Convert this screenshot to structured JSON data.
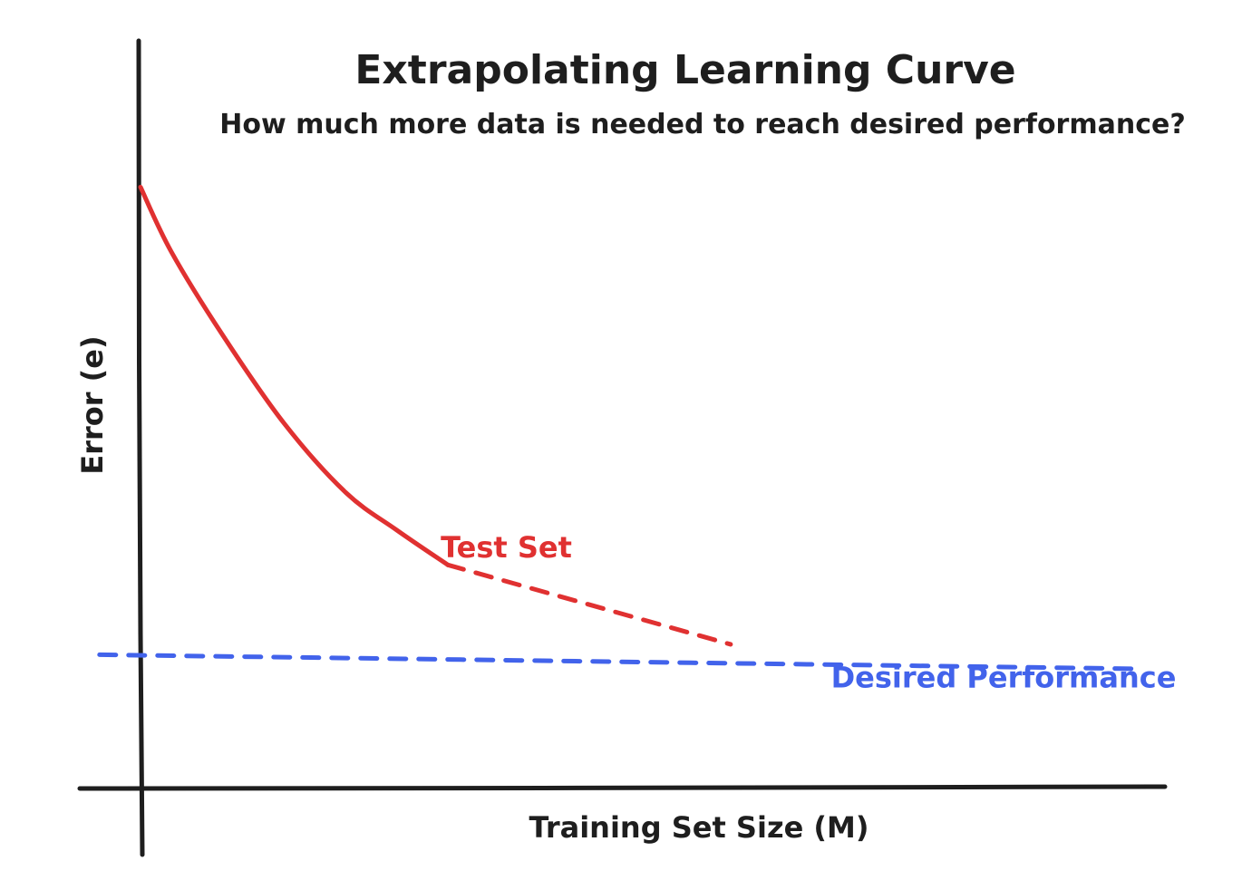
{
  "chart_data": {
    "type": "line",
    "title": "Extrapolating Learning Curve",
    "subtitle": "How much more data is needed to reach desired performance?",
    "xlabel": "Training Set Size (M)",
    "ylabel": "Error (e)",
    "xlim": [
      0,
      100
    ],
    "ylim": [
      0,
      100
    ],
    "grid": false,
    "axis_tick_labels": false,
    "series": [
      {
        "name": "Test Set",
        "style": "solid",
        "color": "#e03131",
        "x": [
          0,
          3,
          8,
          14,
          20,
          25,
          30
        ],
        "y": [
          80.9,
          72.2,
          61.0,
          49.1,
          39.8,
          34.7,
          30.0
        ]
      },
      {
        "name": "Test Set (extrapolated)",
        "style": "dashed",
        "color": "#e03131",
        "x": [
          30,
          57.6
        ],
        "y": [
          30.0,
          19.3
        ]
      },
      {
        "name": "Desired Performance",
        "style": "dashed",
        "color": "#4263eb",
        "x": [
          -4,
          97.6
        ],
        "y": [
          17.9,
          16.0
        ]
      }
    ],
    "annotations": [
      {
        "text": "Test Set",
        "color": "#e03131",
        "x": 29.3,
        "y": 31.0
      },
      {
        "text": "Desired Performance",
        "color": "#4263eb",
        "x": 67.4,
        "y": 13.5
      }
    ],
    "colors": {
      "axis": "#1e1e1e",
      "text": "#1e1e1e"
    }
  }
}
